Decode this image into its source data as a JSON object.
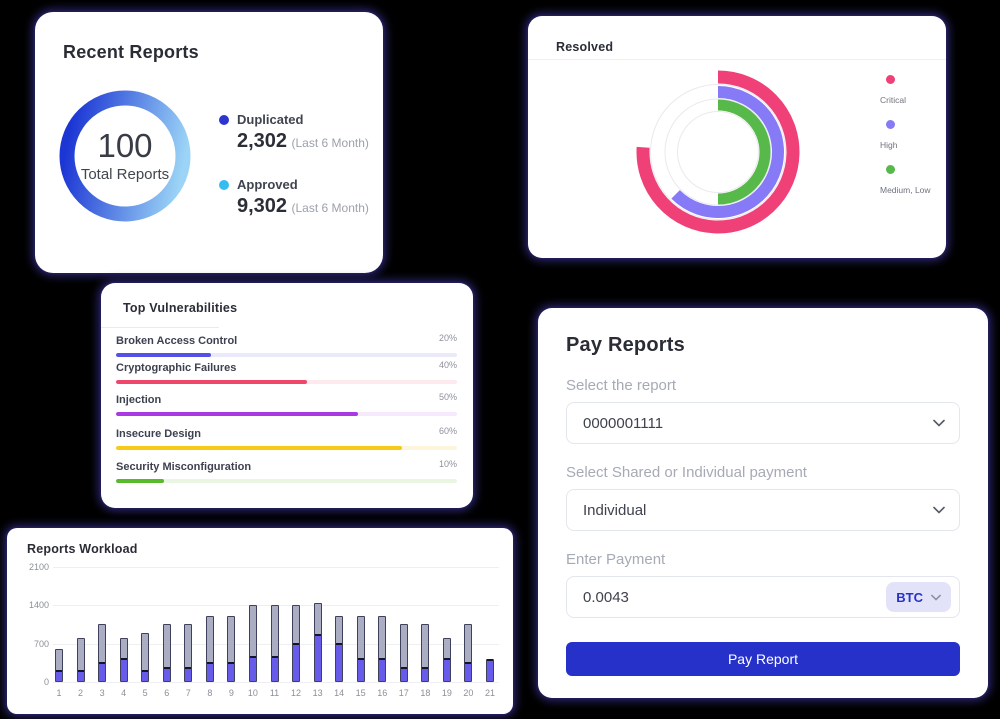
{
  "cards": {
    "recent_reports": {
      "title": "Recent Reports",
      "center_value": "100",
      "center_label": "Total Reports",
      "gradient_start": "#1C36D4",
      "gradient_end": "#9BD4F6",
      "legend": [
        {
          "label": "Duplicated",
          "value": "2,302",
          "note": "(Last 6 Month)",
          "color": "#2D35CF"
        },
        {
          "label": "Approved",
          "value": "9,302",
          "note": "(Last 6 Month)",
          "color": "#35BDF2"
        }
      ]
    },
    "resolved": {
      "title": "Resolved"
    },
    "top_vulnerabilities": {
      "title": "Top Vulnerabilities"
    },
    "pay_reports": {
      "title": "Pay Reports",
      "report_label": "Select the report",
      "report_value": "0000001111",
      "payment_type_label": "Select Shared or Individual payment",
      "payment_type_value": "Individual",
      "amount_label": "Enter Payment",
      "amount_value": "0.0043",
      "currency": "BTC",
      "submit_label": "Pay Report",
      "button_color": "#2531C8"
    },
    "reports_workload": {
      "title": "Reports Workload"
    }
  },
  "chart_data": [
    {
      "id": "recent-reports-donut",
      "type": "pie",
      "title": "Recent Reports",
      "center_value": 100,
      "center_label": "Total Reports",
      "series": [
        {
          "name": "Duplicated",
          "value": 2302,
          "color": "#2D35CF"
        },
        {
          "name": "Approved",
          "value": 9302,
          "color": "#35BDF2"
        }
      ]
    },
    {
      "id": "resolved-radial",
      "type": "radial-bar",
      "title": "Resolved",
      "legend_position": "right",
      "track_color": "#E9E9EE",
      "series": [
        {
          "name": "Critical",
          "percent": 76,
          "color": "#EF4077",
          "radius": 75,
          "width": 13
        },
        {
          "name": "High",
          "percent": 62.5,
          "color": "#867AF6",
          "radius": 60,
          "width": 12
        },
        {
          "name": "Medium, Low",
          "percent": 50,
          "color": "#57B949",
          "radius": 47,
          "width": 11
        }
      ]
    },
    {
      "id": "top-vulnerabilities",
      "type": "bar",
      "orientation": "horizontal",
      "categories": [
        "Broken Access Control",
        "Cryptographic Failures",
        "Injection",
        "Insecure Design",
        "Security Misconfiguration"
      ],
      "value_labels": [
        "20%",
        "40%",
        "50%",
        "60%",
        "10%"
      ],
      "fill_percents": [
        28,
        56,
        71,
        84,
        14
      ],
      "colors": [
        "#5551E6",
        "#EF4769",
        "#A939E3",
        "#F7CA18",
        "#57B92C"
      ],
      "track_colors": [
        "#EAEAFB",
        "#FDE9EE",
        "#F5E9FB",
        "#FCF5DC",
        "#EAF5E4"
      ],
      "row_tops": [
        52,
        79,
        111,
        145,
        178
      ]
    },
    {
      "id": "reports-workload",
      "type": "bar",
      "stacked": true,
      "title": "Reports Workload",
      "categories": [
        "1",
        "2",
        "3",
        "4",
        "5",
        "6",
        "7",
        "8",
        "9",
        "10",
        "11",
        "12",
        "13",
        "14",
        "15",
        "16",
        "17",
        "18",
        "19",
        "20",
        "21"
      ],
      "series": [
        {
          "name": "active",
          "color": "#665CE9",
          "values": [
            200,
            200,
            350,
            420,
            200,
            250,
            250,
            350,
            350,
            450,
            450,
            700,
            850,
            700,
            420,
            420,
            250,
            250,
            420,
            350,
            420
          ]
        },
        {
          "name": "total",
          "color": "#ABAEC3",
          "values": [
            600,
            800,
            1050,
            800,
            900,
            1050,
            1050,
            1200,
            1200,
            1400,
            1400,
            1400,
            1450,
            1200,
            1200,
            1200,
            1050,
            1050,
            800,
            1050,
            420
          ]
        }
      ],
      "ylim": [
        0,
        2100
      ],
      "yticks": [
        0,
        700,
        1400,
        2100
      ],
      "grid": true
    }
  ]
}
